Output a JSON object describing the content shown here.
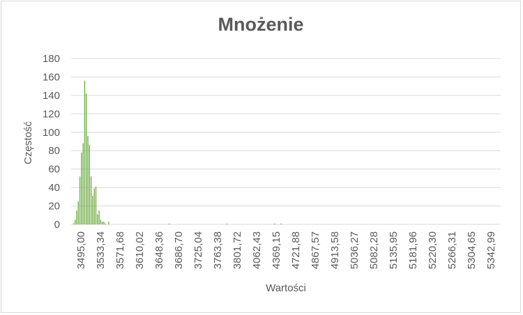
{
  "chart_data": {
    "type": "bar",
    "title": "Mnożenie",
    "xlabel": "Wartości",
    "ylabel": "Częstość",
    "ylim": [
      0,
      180
    ],
    "yticks": [
      "0",
      "20",
      "40",
      "60",
      "80",
      "100",
      "120",
      "140",
      "160",
      "180"
    ],
    "xtick_labels": [
      "3495,00",
      "3533,34",
      "3571,68",
      "3610,02",
      "3648,36",
      "3686,70",
      "3725,04",
      "3763,38",
      "3801,72",
      "4062,43",
      "4369,15",
      "4721,88",
      "4867,57",
      "4913,58",
      "5036,27",
      "5082,28",
      "5135,95",
      "5181,96",
      "5220,30",
      "5266,31",
      "5304,65",
      "5342,99"
    ],
    "grid": "horizontal",
    "series_color": "#70ad47",
    "values": [
      0,
      1,
      5,
      15,
      25,
      52,
      78,
      88,
      156,
      142,
      96,
      86,
      52,
      31,
      39,
      41,
      11,
      15,
      5,
      3,
      3,
      1,
      0,
      3,
      0,
      0,
      0,
      0,
      0,
      0,
      0,
      0,
      0,
      0,
      0,
      0,
      0,
      0,
      0,
      0,
      0,
      0,
      0,
      0,
      0,
      0,
      0,
      0,
      0,
      0,
      0,
      0,
      0,
      0,
      0,
      0,
      0,
      0,
      0,
      0,
      0,
      1,
      0,
      0,
      0,
      0,
      0,
      0,
      0,
      0,
      0,
      0,
      0,
      0,
      0,
      0,
      0,
      0,
      0,
      0,
      0,
      0,
      0,
      0,
      0,
      0,
      0,
      0,
      0,
      0,
      0,
      0,
      0,
      0,
      0,
      0,
      0,
      1,
      0,
      0,
      0,
      0,
      0,
      0,
      0,
      0,
      0,
      0,
      0,
      0,
      0,
      0,
      0,
      0,
      0,
      0,
      0,
      0,
      0,
      0,
      0,
      0,
      0,
      0,
      0,
      0,
      0,
      1,
      0,
      0,
      0,
      1,
      0,
      0,
      0,
      0,
      0,
      0,
      0,
      0,
      0,
      0,
      0,
      0,
      0,
      0,
      0,
      0,
      0,
      0,
      0,
      0,
      0,
      0,
      0,
      0,
      0,
      0,
      0,
      0,
      0,
      0,
      0,
      0,
      0,
      0,
      0,
      0,
      0,
      0,
      0,
      0,
      0,
      0,
      0,
      0,
      0,
      0,
      0,
      0,
      0,
      0,
      0,
      0,
      0,
      0,
      0,
      0,
      0,
      0,
      0,
      0,
      0,
      0,
      0,
      0,
      0,
      0,
      0,
      0,
      0,
      0,
      0,
      0,
      0,
      0,
      0,
      0,
      0,
      0,
      0,
      0,
      0,
      0,
      0,
      0,
      0,
      0,
      0,
      0,
      0,
      0,
      0,
      0,
      0,
      0,
      0,
      0,
      0,
      0,
      0,
      0,
      0,
      0,
      0,
      0,
      0,
      0,
      0,
      0,
      0,
      0,
      0,
      0,
      0,
      0,
      0,
      0,
      0,
      0,
      0,
      0,
      0,
      0,
      0,
      0,
      0,
      0,
      0,
      0,
      0,
      0,
      0,
      0,
      0,
      0,
      0,
      0,
      0
    ]
  }
}
